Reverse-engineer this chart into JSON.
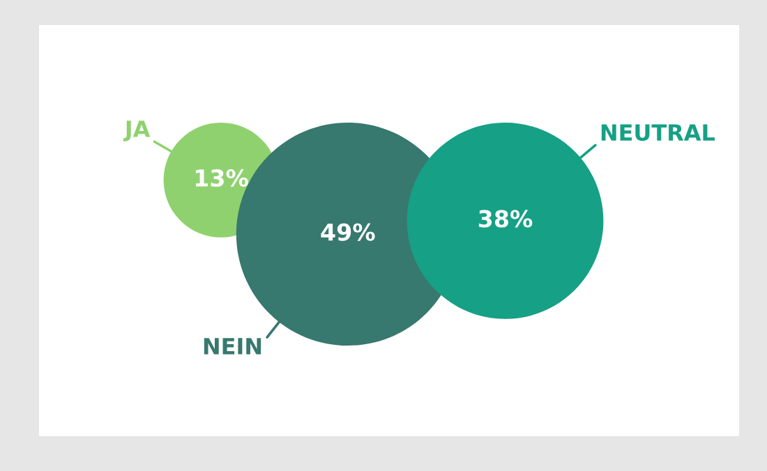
{
  "chart_data": {
    "type": "other",
    "categories": [
      "JA",
      "NEIN",
      "NEUTRAL"
    ],
    "values": [
      13,
      49,
      38
    ],
    "value_labels": [
      "13%",
      "49%",
      "38%"
    ],
    "colors": [
      "#8fd16f",
      "#37786f",
      "#16a085"
    ]
  }
}
